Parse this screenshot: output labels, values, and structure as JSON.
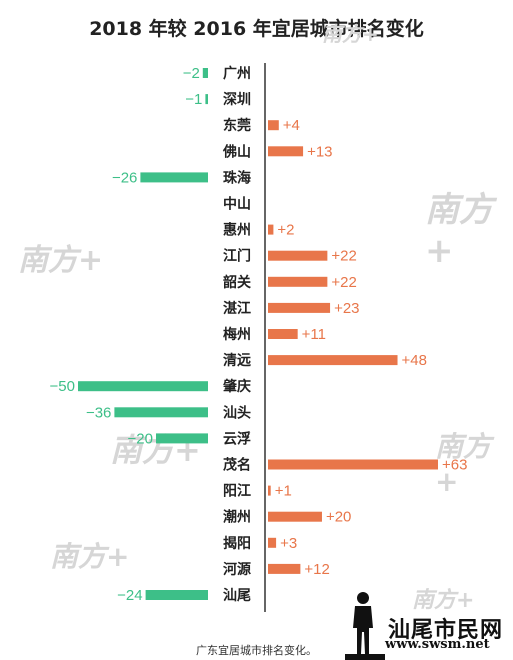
{
  "chart_data": {
    "type": "bar",
    "orientation": "horizontal",
    "title": "2018 年较 2016 年宜居城市排名变化",
    "categories": [
      "广州",
      "深圳",
      "东莞",
      "佛山",
      "珠海",
      "中山",
      "惠州",
      "江门",
      "韶关",
      "湛江",
      "梅州",
      "清远",
      "肇庆",
      "汕头",
      "云浮",
      "茂名",
      "阳江",
      "潮州",
      "揭阳",
      "河源",
      "汕尾"
    ],
    "values": [
      -2,
      -1,
      4,
      13,
      -26,
      null,
      2,
      22,
      22,
      23,
      11,
      48,
      -50,
      -36,
      -20,
      63,
      1,
      20,
      3,
      12,
      -24
    ],
    "value_labels": [
      "−2",
      "−1",
      "+4",
      "+13",
      "−26",
      "",
      "+2",
      "+22",
      "+22",
      "+23",
      "+11",
      "+48",
      "−50",
      "−36",
      "−20",
      "+63",
      "+1",
      "+20",
      "+3",
      "+12",
      "−24"
    ],
    "xlim": [
      -50,
      63
    ],
    "grid": false,
    "colors": {
      "positive": "#e8764a",
      "negative": "#3dbf88",
      "axis": "#333333",
      "label": "#222222"
    }
  },
  "caption": "广东宜居城市排名变化。",
  "watermark": "南方+",
  "logo": {
    "text": "汕尾市民网",
    "url": "www.swsm.net"
  }
}
